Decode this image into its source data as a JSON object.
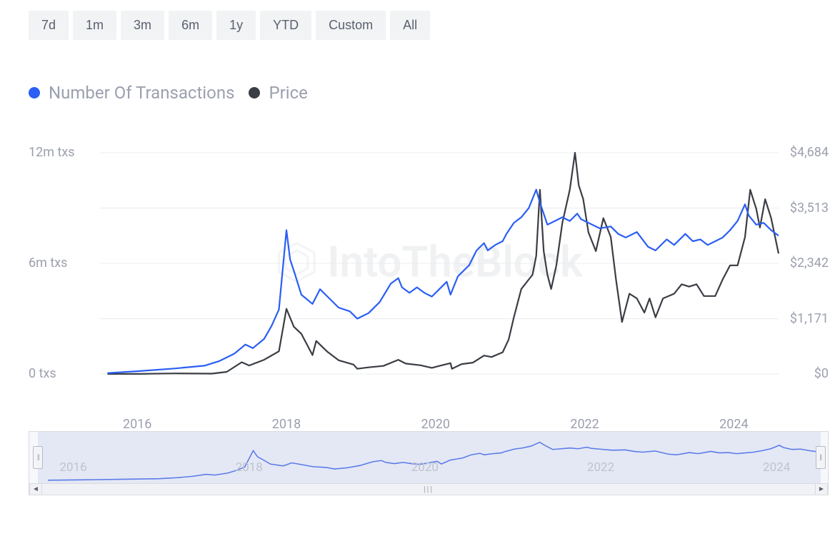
{
  "time_ranges": [
    "7d",
    "1m",
    "3m",
    "6m",
    "1y",
    "YTD",
    "Custom",
    "All"
  ],
  "legend": {
    "transactions": {
      "label": "Number Of Transactions",
      "color": "#2a5ef5"
    },
    "price": {
      "label": "Price",
      "color": "#3a3d44"
    }
  },
  "watermark_text": "IntoTheBlock",
  "chart": {
    "type": "line-dual-axis",
    "background_color": "#ffffff",
    "grid_color": "#ebecee",
    "label_color": "#9ca0ae",
    "label_fontsize": 18,
    "x_axis": {
      "min_year": 2015.5,
      "max_year": 2024.6,
      "ticks": [
        2016,
        2018,
        2020,
        2022,
        2024
      ]
    },
    "y_left": {
      "label_suffix": " txs",
      "min": 0,
      "max": 12000000,
      "ticks": [
        {
          "value": 0,
          "label": "0 txs"
        },
        {
          "value": 6000000,
          "label": "6m txs"
        },
        {
          "value": 12000000,
          "label": "12m txs"
        }
      ],
      "gridlines_at": [
        0,
        3000000,
        6000000,
        9000000,
        12000000
      ]
    },
    "y_right": {
      "prefix": "$",
      "min": 0,
      "max": 4684,
      "ticks": [
        {
          "value": 0,
          "label": "$0"
        },
        {
          "value": 1171,
          "label": "$1,171"
        },
        {
          "value": 2342,
          "label": "$2,342"
        },
        {
          "value": 3513,
          "label": "$3,513"
        },
        {
          "value": 4684,
          "label": "$4,684"
        }
      ]
    },
    "series_transactions": {
      "color": "#2a5ef5",
      "line_width": 2.2,
      "data": [
        [
          2015.6,
          50000
        ],
        [
          2016.0,
          150000
        ],
        [
          2016.5,
          300000
        ],
        [
          2016.9,
          450000
        ],
        [
          2017.1,
          700000
        ],
        [
          2017.3,
          1100000
        ],
        [
          2017.45,
          1600000
        ],
        [
          2017.55,
          1400000
        ],
        [
          2017.7,
          1900000
        ],
        [
          2017.8,
          2600000
        ],
        [
          2017.9,
          3500000
        ],
        [
          2018.0,
          7800000
        ],
        [
          2018.05,
          6200000
        ],
        [
          2018.1,
          5600000
        ],
        [
          2018.2,
          4300000
        ],
        [
          2018.35,
          3800000
        ],
        [
          2018.45,
          4600000
        ],
        [
          2018.55,
          4200000
        ],
        [
          2018.7,
          3600000
        ],
        [
          2018.85,
          3400000
        ],
        [
          2018.95,
          3000000
        ],
        [
          2019.1,
          3300000
        ],
        [
          2019.25,
          3900000
        ],
        [
          2019.4,
          4900000
        ],
        [
          2019.5,
          5200000
        ],
        [
          2019.55,
          4700000
        ],
        [
          2019.65,
          4400000
        ],
        [
          2019.75,
          4700000
        ],
        [
          2019.85,
          4400000
        ],
        [
          2019.95,
          4200000
        ],
        [
          2020.05,
          4600000
        ],
        [
          2020.15,
          5000000
        ],
        [
          2020.2,
          4300000
        ],
        [
          2020.3,
          5300000
        ],
        [
          2020.45,
          5900000
        ],
        [
          2020.55,
          6700000
        ],
        [
          2020.65,
          7100000
        ],
        [
          2020.7,
          6700000
        ],
        [
          2020.8,
          7000000
        ],
        [
          2020.9,
          7200000
        ],
        [
          2020.95,
          7600000
        ],
        [
          2021.05,
          8200000
        ],
        [
          2021.15,
          8500000
        ],
        [
          2021.25,
          9000000
        ],
        [
          2021.35,
          10000000
        ],
        [
          2021.4,
          9300000
        ],
        [
          2021.5,
          8100000
        ],
        [
          2021.6,
          8300000
        ],
        [
          2021.7,
          8500000
        ],
        [
          2021.8,
          8300000
        ],
        [
          2021.9,
          8700000
        ],
        [
          2021.95,
          8400000
        ],
        [
          2022.05,
          8200000
        ],
        [
          2022.2,
          7900000
        ],
        [
          2022.35,
          8000000
        ],
        [
          2022.45,
          7600000
        ],
        [
          2022.55,
          7400000
        ],
        [
          2022.7,
          7700000
        ],
        [
          2022.85,
          6900000
        ],
        [
          2022.95,
          6700000
        ],
        [
          2023.1,
          7300000
        ],
        [
          2023.2,
          7000000
        ],
        [
          2023.35,
          7600000
        ],
        [
          2023.45,
          7200000
        ],
        [
          2023.55,
          7300000
        ],
        [
          2023.65,
          7000000
        ],
        [
          2023.75,
          7200000
        ],
        [
          2023.85,
          7400000
        ],
        [
          2023.95,
          7800000
        ],
        [
          2024.05,
          8300000
        ],
        [
          2024.15,
          9200000
        ],
        [
          2024.2,
          8600000
        ],
        [
          2024.3,
          8100000
        ],
        [
          2024.4,
          8200000
        ],
        [
          2024.5,
          7800000
        ],
        [
          2024.6,
          7500000
        ]
      ]
    },
    "series_price": {
      "color": "#3a3d44",
      "line_width": 2.2,
      "data": [
        [
          2015.6,
          1
        ],
        [
          2016.0,
          1
        ],
        [
          2016.5,
          12
        ],
        [
          2017.0,
          8
        ],
        [
          2017.2,
          45
        ],
        [
          2017.4,
          250
        ],
        [
          2017.5,
          180
        ],
        [
          2017.7,
          300
        ],
        [
          2017.9,
          480
        ],
        [
          2018.0,
          1380
        ],
        [
          2018.1,
          1000
        ],
        [
          2018.2,
          850
        ],
        [
          2018.35,
          400
        ],
        [
          2018.4,
          700
        ],
        [
          2018.55,
          470
        ],
        [
          2018.7,
          290
        ],
        [
          2018.9,
          200
        ],
        [
          2018.95,
          110
        ],
        [
          2019.1,
          140
        ],
        [
          2019.3,
          170
        ],
        [
          2019.5,
          300
        ],
        [
          2019.6,
          220
        ],
        [
          2019.8,
          185
        ],
        [
          2019.95,
          130
        ],
        [
          2020.05,
          170
        ],
        [
          2020.2,
          230
        ],
        [
          2020.22,
          110
        ],
        [
          2020.35,
          210
        ],
        [
          2020.5,
          240
        ],
        [
          2020.65,
          390
        ],
        [
          2020.75,
          360
        ],
        [
          2020.9,
          460
        ],
        [
          2020.98,
          730
        ],
        [
          2021.05,
          1200
        ],
        [
          2021.15,
          1800
        ],
        [
          2021.3,
          2100
        ],
        [
          2021.35,
          2500
        ],
        [
          2021.4,
          3900
        ],
        [
          2021.45,
          2600
        ],
        [
          2021.5,
          2100
        ],
        [
          2021.55,
          1800
        ],
        [
          2021.62,
          2300
        ],
        [
          2021.7,
          3200
        ],
        [
          2021.8,
          3900
        ],
        [
          2021.87,
          4684
        ],
        [
          2021.92,
          4000
        ],
        [
          2021.98,
          3700
        ],
        [
          2022.05,
          3000
        ],
        [
          2022.15,
          2600
        ],
        [
          2022.25,
          3300
        ],
        [
          2022.35,
          2900
        ],
        [
          2022.42,
          2000
        ],
        [
          2022.5,
          1100
        ],
        [
          2022.6,
          1700
        ],
        [
          2022.7,
          1600
        ],
        [
          2022.8,
          1300
        ],
        [
          2022.87,
          1600
        ],
        [
          2022.95,
          1200
        ],
        [
          2023.05,
          1600
        ],
        [
          2023.2,
          1700
        ],
        [
          2023.3,
          1900
        ],
        [
          2023.4,
          1850
        ],
        [
          2023.5,
          1900
        ],
        [
          2023.6,
          1650
        ],
        [
          2023.75,
          1650
        ],
        [
          2023.85,
          2000
        ],
        [
          2023.95,
          2300
        ],
        [
          2024.05,
          2300
        ],
        [
          2024.15,
          2900
        ],
        [
          2024.22,
          3900
        ],
        [
          2024.3,
          3500
        ],
        [
          2024.35,
          3100
        ],
        [
          2024.42,
          3700
        ],
        [
          2024.5,
          3300
        ],
        [
          2024.6,
          2550
        ]
      ]
    }
  },
  "navigator": {
    "background_color": "#f7f8fb",
    "mask_color": "rgba(180,190,230,0.28)",
    "handle_border": "#b8bcc6",
    "series_color": "#5b7be8",
    "x_ticks": [
      2016,
      2018,
      2020,
      2022,
      2024
    ],
    "range_start_year": 2015.6,
    "range_end_year": 2024.5
  }
}
